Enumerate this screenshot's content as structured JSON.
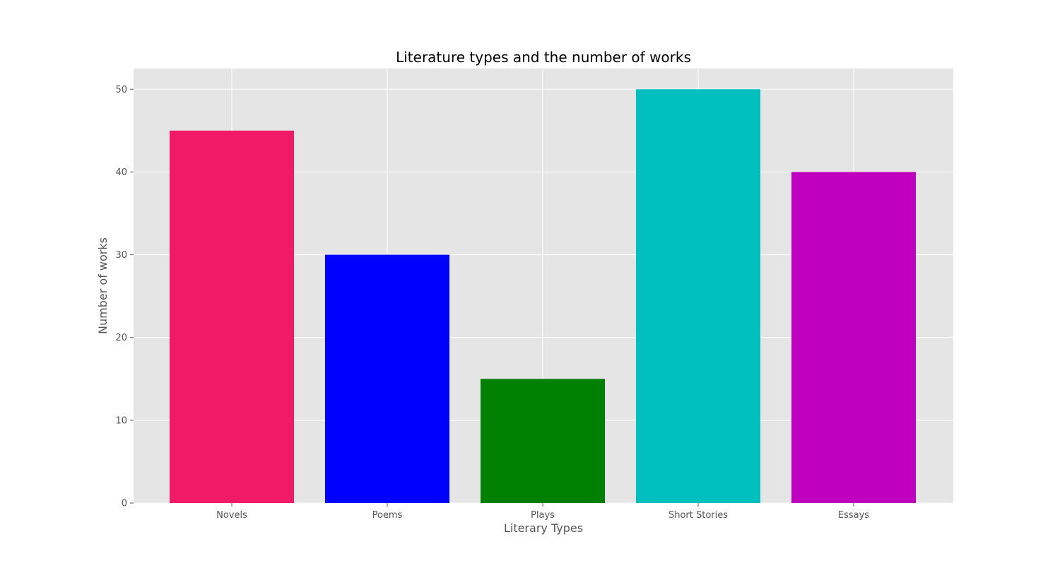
{
  "chart_data": {
    "type": "bar",
    "title": "Literature types and the number of works",
    "xlabel": "Literary Types",
    "ylabel": "Number of works",
    "categories": [
      "Novels",
      "Poems",
      "Plays",
      "Short Stories",
      "Essays"
    ],
    "values": [
      45,
      30,
      15,
      50,
      40
    ],
    "colors": [
      "#f01a66",
      "#0000ff",
      "#008000",
      "#00bfbf",
      "#bf00bf"
    ],
    "ylim": [
      0,
      52.5
    ],
    "yticks": [
      0,
      10,
      20,
      30,
      40,
      50
    ],
    "grid": true,
    "legend": "none",
    "background": "#e5e5e5"
  }
}
